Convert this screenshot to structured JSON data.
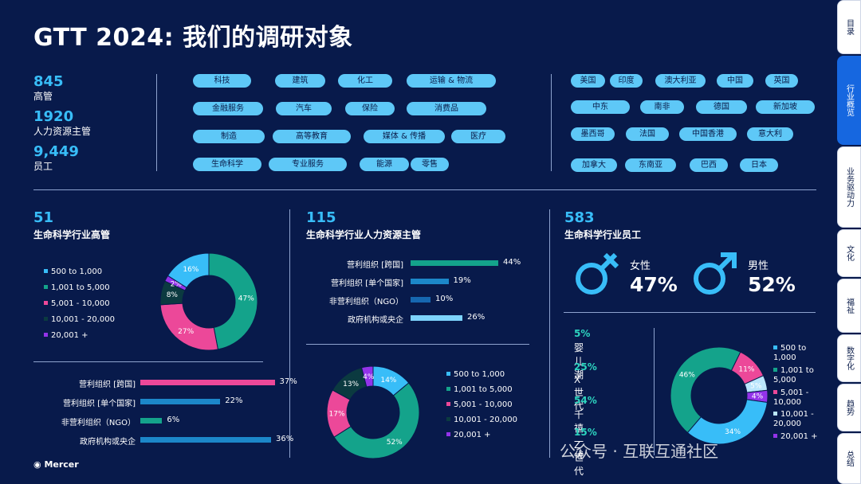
{
  "title": "GTT 2024: 我们的调研对象",
  "stats": [
    {
      "n": "845",
      "l": "高管"
    },
    {
      "n": "1920",
      "l": "人力资源主管"
    },
    {
      "n": "9,449",
      "l": "员工"
    }
  ],
  "industries": [
    "科技",
    "建筑",
    "化工",
    "运输 & 物流",
    "金融服务",
    "汽车",
    "保险",
    "消费品",
    "制造",
    "高等教育",
    "媒体 & 传播",
    "医疗",
    "生命科学",
    "专业服务",
    "能源",
    "零售"
  ],
  "countries": [
    "美国",
    "印度",
    "澳大利亚",
    "中国",
    "英国",
    "中东",
    "南非",
    "德国",
    "新加坡",
    "墨西哥",
    "法国",
    "中国香港",
    "意大利",
    "加拿大",
    "东南亚",
    "巴西",
    "日本"
  ],
  "exec": {
    "count": "51",
    "label": "生命科学行业高管",
    "legend": [
      "500 to 1,000",
      "1,001 to 5,000",
      "5,001 - 10,000",
      "10,001 - 20,000",
      "20,001 +"
    ],
    "donut": [
      {
        "v": 47,
        "c": "#14a38b",
        "label": "47%"
      },
      {
        "v": 27,
        "c": "#ec4899",
        "label": "27%"
      },
      {
        "v": 8,
        "c": "#0b3a40",
        "label": "8%"
      },
      {
        "v": 2,
        "c": "#9333ea",
        "label": "2%"
      },
      {
        "v": 16,
        "c": "#38bdf8",
        "label": "16%"
      }
    ],
    "bars": [
      {
        "l": "营利组织 [跨国]",
        "v": 37,
        "label": "37%",
        "c": "#ec4899"
      },
      {
        "l": "营利组织 [单个国家]",
        "v": 22,
        "label": "22%",
        "c": "#1c87c9"
      },
      {
        "l": "非营利组织（NGO）",
        "v": 6,
        "label": "6%",
        "c": "#14a38b"
      },
      {
        "l": "政府机构或央企",
        "v": 36,
        "label": "36%",
        "c": "#1c87c9"
      }
    ]
  },
  "hr": {
    "count": "115",
    "label": "生命科学行业人力资源主管",
    "bars": [
      {
        "l": "营利组织 [跨国]",
        "v": 44,
        "label": "44%",
        "c": "#14a38b"
      },
      {
        "l": "营利组织 [单个国家]",
        "v": 19,
        "label": "19%",
        "c": "#1c87c9"
      },
      {
        "l": "非营利组织（NGO）",
        "v": 10,
        "label": "10%",
        "c": "#1667b0"
      },
      {
        "l": "政府机构或央企",
        "v": 26,
        "label": "26%",
        "c": "#7dd3fc"
      }
    ],
    "legend": [
      "500 to 1,000",
      "1,001 to 5,000",
      "5,001 - 10,000",
      "10,001 - 20,000",
      "20,001 +"
    ],
    "donut": [
      {
        "v": 14,
        "c": "#38bdf8",
        "label": "14%"
      },
      {
        "v": 52,
        "c": "#14a38b",
        "label": "52%"
      },
      {
        "v": 17,
        "c": "#ec4899",
        "label": "17%"
      },
      {
        "v": 13,
        "c": "#0b3a40",
        "label": "13%"
      },
      {
        "v": 4,
        "c": "#9333ea",
        "label": "4%"
      }
    ]
  },
  "emp": {
    "count": "583",
    "label": "生命科学行业员工",
    "female": {
      "label": "女性",
      "pct": "47%"
    },
    "male": {
      "label": "男性",
      "pct": "52%"
    },
    "gens": [
      {
        "p": "5%",
        "t": "婴儿潮"
      },
      {
        "p": "25%",
        "t": "X世代"
      },
      {
        "p": "54%",
        "t": "千禧一代"
      },
      {
        "p": "15%",
        "t": "Z世代"
      }
    ],
    "legend": [
      "500 to 1,000",
      "1,001 to 5,000",
      "5,001 - 10,000",
      "10,001 - 20,000",
      "20,001 +"
    ],
    "donut": [
      {
        "v": 11,
        "c": "#ec4899",
        "label": "11%"
      },
      {
        "v": 5,
        "c": "#bae6fd",
        "label": "5%"
      },
      {
        "v": 4,
        "c": "#9333ea",
        "label": "4%"
      },
      {
        "v": 34,
        "c": "#38bdf8",
        "label": "34%"
      },
      {
        "v": 46,
        "c": "#14a38b",
        "label": "46%"
      }
    ]
  },
  "legend_colors": [
    "#38bdf8",
    "#14a38b",
    "#ec4899",
    "#0b3a40",
    "#9333ea"
  ],
  "emp_legend_colors": [
    "#38bdf8",
    "#14a38b",
    "#ec4899",
    "#bae6fd",
    "#9333ea"
  ],
  "tabs": [
    "目录",
    "行业概览",
    "业务驱动力",
    "文化",
    "福祉",
    "数字化",
    "趋势",
    "总结"
  ],
  "active_tab": 1,
  "watermark": "公众号 · 互联互通社区",
  "logo": "Mercer"
}
